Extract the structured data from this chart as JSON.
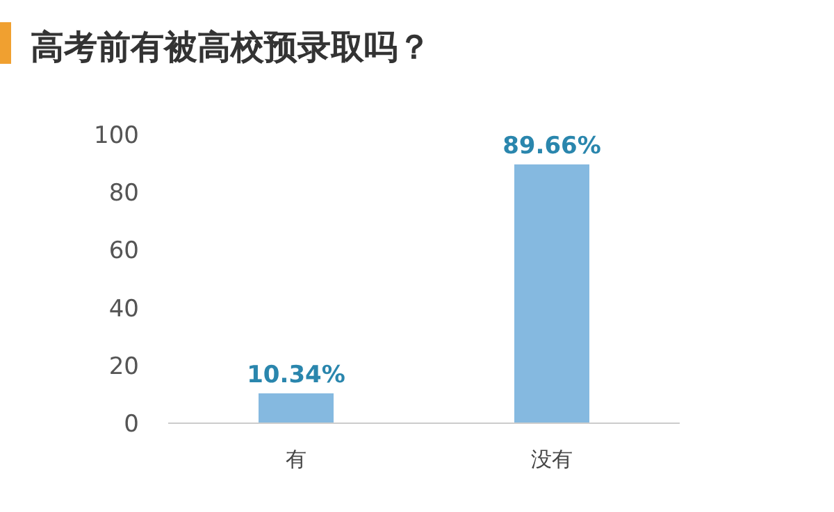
{
  "chart_data": {
    "type": "bar",
    "title": "高考前有被高校预录取吗？",
    "categories": [
      "有",
      "没有"
    ],
    "values": [
      10.34,
      89.66
    ],
    "value_labels": [
      "10.34%",
      "89.66%"
    ],
    "color": "#85b9e0",
    "ylim": [
      0,
      100
    ],
    "yticks": [
      0,
      20,
      40,
      60,
      80,
      100
    ],
    "grid": false
  }
}
